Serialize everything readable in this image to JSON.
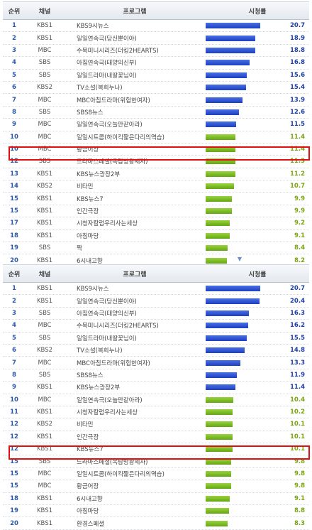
{
  "headers": {
    "rank": "순위",
    "channel": "채널",
    "program": "프로그램",
    "rating": "시청률"
  },
  "top_table": {
    "rows": [
      {
        "rank": "1",
        "channel": "KBS1",
        "program": "KBS9시뉴스",
        "value": "20.7",
        "level": 20.7,
        "color": "blue"
      },
      {
        "rank": "2",
        "channel": "KBS1",
        "program": "일일연속극(당신뿐이야)",
        "value": "18.9",
        "level": 18.9,
        "color": "blue"
      },
      {
        "rank": "3",
        "channel": "MBC",
        "program": "수목미니시리즈(더킹2HEARTS)",
        "value": "18.8",
        "level": 18.8,
        "color": "blue"
      },
      {
        "rank": "4",
        "channel": "SBS",
        "program": "아침연속극(태양의신부)",
        "value": "16.8",
        "level": 16.8,
        "color": "blue"
      },
      {
        "rank": "5",
        "channel": "SBS",
        "program": "일일드라마(내딸꽃님이)",
        "value": "15.6",
        "level": 15.6,
        "color": "blue"
      },
      {
        "rank": "6",
        "channel": "KBS2",
        "program": "TV소설(복희누나)",
        "value": "15.4",
        "level": 15.4,
        "color": "blue"
      },
      {
        "rank": "7",
        "channel": "MBC",
        "program": "MBC아침드라마(위험한여자)",
        "value": "13.9",
        "level": 13.9,
        "color": "blue"
      },
      {
        "rank": "8",
        "channel": "SBS",
        "program": "SBS8뉴스",
        "value": "12.6",
        "level": 12.6,
        "color": "blue"
      },
      {
        "rank": "9",
        "channel": "MBC",
        "program": "일일연속극(오늘만같아라)",
        "value": "11.5",
        "level": 11.5,
        "color": "blue"
      },
      {
        "rank": "10",
        "channel": "MBC",
        "program": "일일시트콤(하이킥짧은다리의역습)",
        "value": "11.4",
        "level": 11.4,
        "color": "green"
      },
      {
        "rank": "10",
        "channel": "MBC",
        "program": "황금어장",
        "value": "11.4",
        "level": 11.4,
        "color": "green"
      },
      {
        "rank": "12",
        "channel": "SBS",
        "program": "드라마스페셜(옥탑방왕세자)",
        "value": "11.3",
        "level": 11.3,
        "color": "green"
      },
      {
        "rank": "13",
        "channel": "KBS1",
        "program": "KBS뉴스광장2부",
        "value": "11.2",
        "level": 11.2,
        "color": "green"
      },
      {
        "rank": "14",
        "channel": "KBS2",
        "program": "비타민",
        "value": "10.7",
        "level": 10.7,
        "color": "green"
      },
      {
        "rank": "15",
        "channel": "KBS1",
        "program": "KBS뉴스7",
        "value": "9.9",
        "level": 9.9,
        "color": "green"
      },
      {
        "rank": "15",
        "channel": "KBS1",
        "program": "인간극장",
        "value": "9.9",
        "level": 9.9,
        "color": "green"
      },
      {
        "rank": "17",
        "channel": "KBS1",
        "program": "시청자칼럼우리사는세상",
        "value": "9.2",
        "level": 9.2,
        "color": "green"
      },
      {
        "rank": "18",
        "channel": "KBS1",
        "program": "아침마당",
        "value": "9.1",
        "level": 9.1,
        "color": "green"
      },
      {
        "rank": "19",
        "channel": "SBS",
        "program": "짝",
        "value": "8.4",
        "level": 8.4,
        "color": "green"
      },
      {
        "rank": "20",
        "channel": "KBS1",
        "program": "6시내고향",
        "value": "8.2",
        "level": 8.2,
        "color": "green"
      }
    ]
  },
  "bottom_table": {
    "rows": [
      {
        "rank": "1",
        "channel": "KBS1",
        "program": "KBS9시뉴스",
        "value": "20.7",
        "level": 20.7,
        "color": "blue"
      },
      {
        "rank": "2",
        "channel": "KBS1",
        "program": "일일연속극(당신뿐이야)",
        "value": "20.4",
        "level": 20.4,
        "color": "blue"
      },
      {
        "rank": "3",
        "channel": "SBS",
        "program": "아침연속극(태양의신부)",
        "value": "16.3",
        "level": 16.3,
        "color": "blue"
      },
      {
        "rank": "4",
        "channel": "MBC",
        "program": "수목미니시리즈(더킹2HEARTS)",
        "value": "16.2",
        "level": 16.2,
        "color": "blue"
      },
      {
        "rank": "5",
        "channel": "SBS",
        "program": "일일드라마(내딸꽃님이)",
        "value": "15.5",
        "level": 15.5,
        "color": "blue"
      },
      {
        "rank": "6",
        "channel": "KBS2",
        "program": "TV소설(복희누나)",
        "value": "14.8",
        "level": 14.8,
        "color": "blue"
      },
      {
        "rank": "7",
        "channel": "MBC",
        "program": "MBC아침드라마(위험한여자)",
        "value": "13.3",
        "level": 13.3,
        "color": "blue"
      },
      {
        "rank": "8",
        "channel": "SBS",
        "program": "SBS8뉴스",
        "value": "11.9",
        "level": 11.9,
        "color": "blue"
      },
      {
        "rank": "9",
        "channel": "KBS1",
        "program": "KBS뉴스광장2부",
        "value": "11.4",
        "level": 11.4,
        "color": "blue"
      },
      {
        "rank": "10",
        "channel": "MBC",
        "program": "일일연속극(오늘만같아라)",
        "value": "10.4",
        "level": 10.4,
        "color": "green"
      },
      {
        "rank": "11",
        "channel": "KBS1",
        "program": "시청자칼럼우리사는세상",
        "value": "10.2",
        "level": 10.2,
        "color": "green"
      },
      {
        "rank": "12",
        "channel": "KBS2",
        "program": "비타민",
        "value": "10.1",
        "level": 10.1,
        "color": "green"
      },
      {
        "rank": "12",
        "channel": "KBS1",
        "program": "인간극장",
        "value": "10.1",
        "level": 10.1,
        "color": "green"
      },
      {
        "rank": "12",
        "channel": "KBS1",
        "program": "KBS뉴스7",
        "value": "10.1",
        "level": 10.1,
        "color": "green"
      },
      {
        "rank": "15",
        "channel": "SBS",
        "program": "드라마스페셜(옥탑방왕세자)",
        "value": "9.8",
        "level": 9.8,
        "color": "green"
      },
      {
        "rank": "15",
        "channel": "MBC",
        "program": "일일시트콤(하이킥짧은다리의역습)",
        "value": "9.8",
        "level": 9.8,
        "color": "green"
      },
      {
        "rank": "15",
        "channel": "MBC",
        "program": "황금어장",
        "value": "9.8",
        "level": 9.8,
        "color": "green"
      },
      {
        "rank": "18",
        "channel": "KBS1",
        "program": "6시내고향",
        "value": "9.1",
        "level": 9.1,
        "color": "green"
      },
      {
        "rank": "19",
        "channel": "KBS1",
        "program": "아침마당",
        "value": "8.8",
        "level": 8.8,
        "color": "green"
      },
      {
        "rank": "20",
        "channel": "KBS1",
        "program": "환경스페셜",
        "value": "8.3",
        "level": 8.3,
        "color": "green"
      }
    ]
  },
  "colors": {
    "bar_blue": "#1d3fc4",
    "bar_green": "#63a814",
    "highlight": "#e01010"
  },
  "icons": {
    "divider": "chevron-down-icon"
  }
}
